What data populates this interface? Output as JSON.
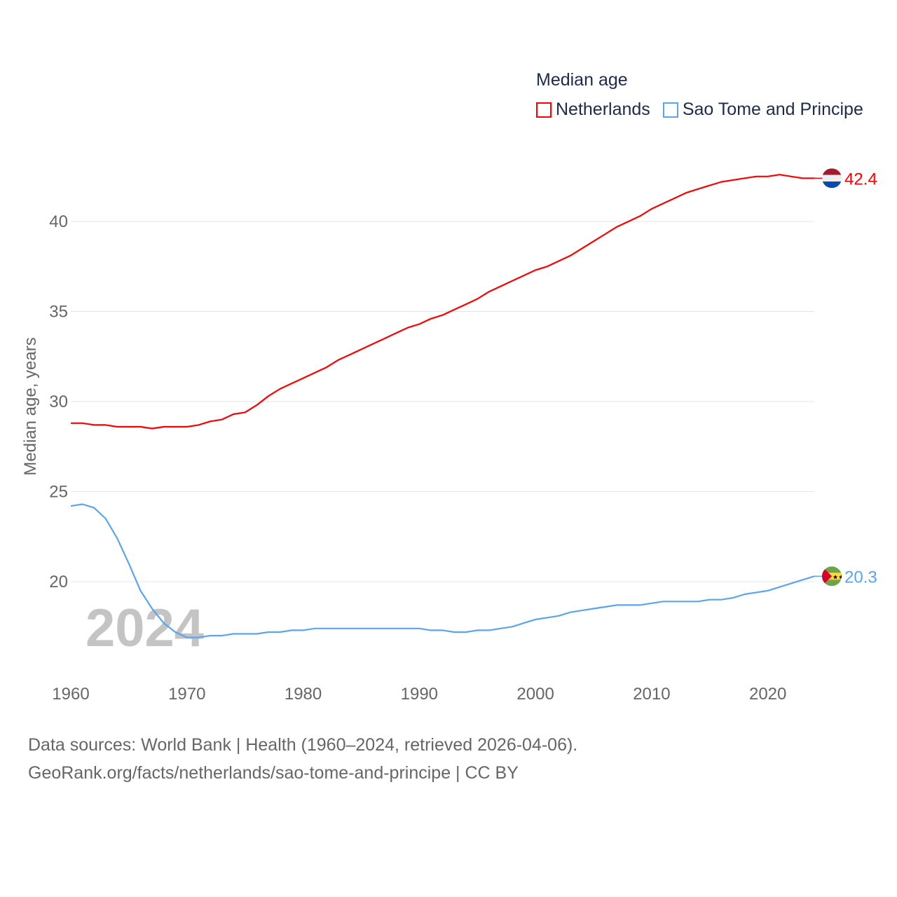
{
  "chart_data": {
    "type": "line",
    "legend_title": "Median age",
    "ylabel": "Median age, years",
    "xlabel": "",
    "ylim": [
      15,
      43.5
    ],
    "xlim": [
      1960,
      2024
    ],
    "yticks": [
      20,
      25,
      30,
      35,
      40
    ],
    "xticks": [
      1960,
      1970,
      1980,
      1990,
      2000,
      2010,
      2020
    ],
    "grid": true,
    "legend_position": "top-right",
    "year_watermark": "2024",
    "x": [
      1960,
      1961,
      1962,
      1963,
      1964,
      1965,
      1966,
      1967,
      1968,
      1969,
      1970,
      1971,
      1972,
      1973,
      1974,
      1975,
      1976,
      1977,
      1978,
      1979,
      1980,
      1981,
      1982,
      1983,
      1984,
      1985,
      1986,
      1987,
      1988,
      1989,
      1990,
      1991,
      1992,
      1993,
      1994,
      1995,
      1996,
      1997,
      1998,
      1999,
      2000,
      2001,
      2002,
      2003,
      2004,
      2005,
      2006,
      2007,
      2008,
      2009,
      2010,
      2011,
      2012,
      2013,
      2014,
      2015,
      2016,
      2017,
      2018,
      2019,
      2020,
      2021,
      2022,
      2023,
      2024
    ],
    "series": [
      {
        "name": "Netherlands",
        "color": "#ff0000",
        "end_label": "42.4",
        "values": [
          28.8,
          28.8,
          28.7,
          28.7,
          28.6,
          28.6,
          28.6,
          28.5,
          28.6,
          28.6,
          28.6,
          28.7,
          28.9,
          29.0,
          29.3,
          29.4,
          29.8,
          30.3,
          30.7,
          31.0,
          31.3,
          31.6,
          31.9,
          32.3,
          32.6,
          32.9,
          33.2,
          33.5,
          33.8,
          34.1,
          34.3,
          34.6,
          34.8,
          35.1,
          35.4,
          35.7,
          36.1,
          36.4,
          36.7,
          37.0,
          37.3,
          37.5,
          37.8,
          38.1,
          38.5,
          38.9,
          39.3,
          39.7,
          40.0,
          40.3,
          40.7,
          41.0,
          41.3,
          41.6,
          41.8,
          42.0,
          42.2,
          42.3,
          42.4,
          42.5,
          42.5,
          42.6,
          42.5,
          42.4,
          42.4
        ]
      },
      {
        "name": "Sao Tome and Principe",
        "color": "#5ba4f0",
        "end_label": "20.3",
        "values": [
          24.2,
          24.3,
          24.1,
          23.5,
          22.4,
          21.0,
          19.5,
          18.5,
          17.7,
          17.2,
          16.9,
          16.9,
          17.0,
          17.0,
          17.1,
          17.1,
          17.1,
          17.2,
          17.2,
          17.3,
          17.3,
          17.4,
          17.4,
          17.4,
          17.4,
          17.4,
          17.4,
          17.4,
          17.4,
          17.4,
          17.4,
          17.3,
          17.3,
          17.2,
          17.2,
          17.3,
          17.3,
          17.4,
          17.5,
          17.7,
          17.9,
          18.0,
          18.1,
          18.3,
          18.4,
          18.5,
          18.6,
          18.7,
          18.7,
          18.7,
          18.8,
          18.9,
          18.9,
          18.9,
          18.9,
          19.0,
          19.0,
          19.1,
          19.3,
          19.4,
          19.5,
          19.7,
          19.9,
          20.1,
          20.3
        ]
      }
    ]
  },
  "footer": {
    "line1": "Data sources: World Bank | Health (1960–2024, retrieved 2026-04-06).",
    "line2": "GeoRank.org/facts/netherlands/sao-tome-and-principe | CC BY"
  }
}
